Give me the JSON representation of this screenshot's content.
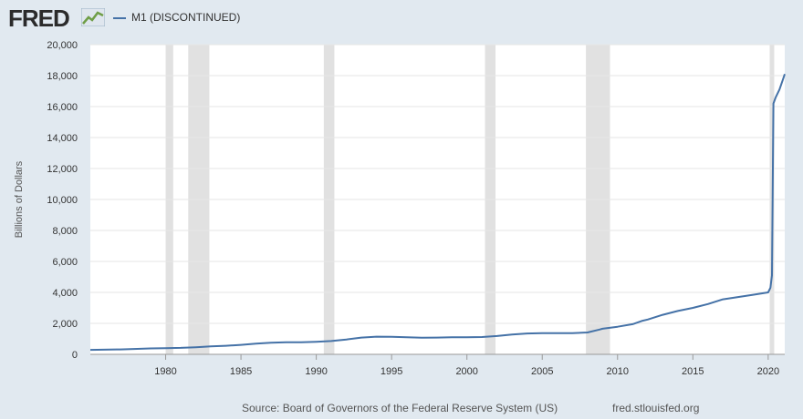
{
  "header": {
    "logo_text": "FRED",
    "logo_icon": "trend-line-icon"
  },
  "colors": {
    "background": "#e1e9f0",
    "plot_background": "#ffffff",
    "series_line": "#4572a7",
    "recession_band": "#e1e1e1",
    "grid": "#e6e6e6"
  },
  "footer": {
    "source": "Source: Board of Governors of the Federal Reserve System (US)",
    "url": "fred.stlouisfed.org"
  },
  "chart_data": {
    "type": "line",
    "title": "",
    "xlabel": "",
    "ylabel": "Billions of Dollars",
    "legend_position": "top-left",
    "grid": true,
    "xlim": [
      1975.0,
      2021.1
    ],
    "ylim": [
      0,
      20000
    ],
    "xticks": [
      1980,
      1985,
      1990,
      1995,
      2000,
      2005,
      2010,
      2015,
      2020
    ],
    "xtick_labels": [
      "1980",
      "1985",
      "1990",
      "1995",
      "2000",
      "2005",
      "2010",
      "2015",
      "2020"
    ],
    "yticks": [
      0,
      2000,
      4000,
      6000,
      8000,
      10000,
      12000,
      14000,
      16000,
      18000,
      20000
    ],
    "ytick_labels": [
      "0",
      "2,000",
      "4,000",
      "6,000",
      "8,000",
      "10,000",
      "12,000",
      "14,000",
      "16,000",
      "18,000",
      "20,000"
    ],
    "recessions": [
      [
        1980.0,
        1980.5
      ],
      [
        1981.5,
        1982.9
      ],
      [
        1990.5,
        1991.2
      ],
      [
        2001.2,
        2001.9
      ],
      [
        2007.9,
        2009.5
      ],
      [
        2020.1,
        2020.4
      ]
    ],
    "series": [
      {
        "name": "M1 (DISCONTINUED)",
        "x": [
          1975.0,
          1977.0,
          1979.0,
          1980.0,
          1981.0,
          1982.0,
          1983.0,
          1984.0,
          1985.0,
          1986.0,
          1987.0,
          1988.0,
          1989.0,
          1990.0,
          1991.0,
          1992.0,
          1993.0,
          1994.0,
          1995.0,
          1996.0,
          1997.0,
          1998.0,
          1999.0,
          2000.0,
          2001.0,
          2002.0,
          2003.0,
          2004.0,
          2005.0,
          2006.0,
          2007.0,
          2008.0,
          2008.8,
          2009.0,
          2010.0,
          2011.0,
          2011.6,
          2012.0,
          2013.0,
          2014.0,
          2015.0,
          2016.0,
          2017.0,
          2018.0,
          2019.0,
          2020.0,
          2020.15,
          2020.25,
          2020.35,
          2020.5,
          2020.75,
          2021.0,
          2021.1
        ],
        "values": [
          290,
          320,
          380,
          400,
          420,
          460,
          510,
          550,
          610,
          690,
          750,
          780,
          780,
          810,
          860,
          960,
          1080,
          1140,
          1130,
          1100,
          1070,
          1080,
          1100,
          1100,
          1120,
          1180,
          1280,
          1350,
          1370,
          1370,
          1370,
          1410,
          1600,
          1650,
          1780,
          1950,
          2150,
          2250,
          2550,
          2800,
          3000,
          3250,
          3550,
          3700,
          3850,
          4000,
          4300,
          5100,
          16200,
          16600,
          17100,
          17800,
          18100
        ]
      }
    ]
  }
}
